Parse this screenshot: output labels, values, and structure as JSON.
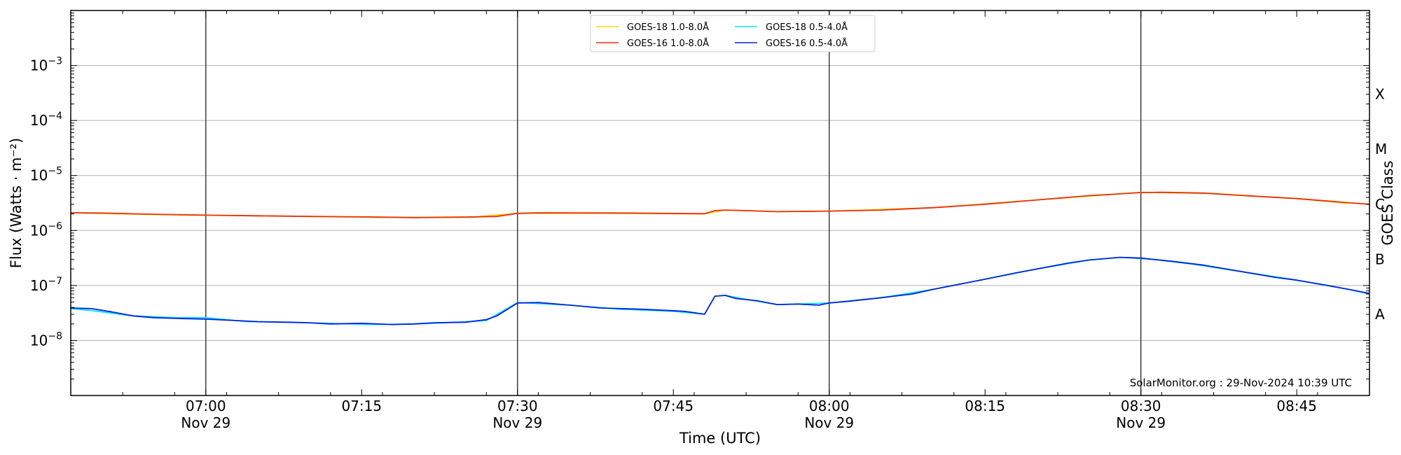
{
  "chart_data": {
    "type": "line",
    "title": "",
    "xlabel": "Time (UTC)",
    "ylabel": "Flux (Watts · m⁻²)",
    "y2label": "GOES Class",
    "yscale": "log",
    "xlim": [
      "06:47",
      "08:52"
    ],
    "ylim": [
      1e-09,
      0.01
    ],
    "grid": "horizontal at decades",
    "legend_position": "top-center",
    "credit": "SolarMonitor.org : 29-Nov-2024 10:39 UTC",
    "x_ticks": [
      {
        "t": "07:00",
        "label": "07:00",
        "date": "Nov 29"
      },
      {
        "t": "07:15",
        "label": "07:15",
        "date": ""
      },
      {
        "t": "07:30",
        "label": "07:30",
        "date": "Nov 29"
      },
      {
        "t": "07:45",
        "label": "07:45",
        "date": ""
      },
      {
        "t": "08:00",
        "label": "08:00",
        "date": "Nov 29"
      },
      {
        "t": "08:15",
        "label": "08:15",
        "date": ""
      },
      {
        "t": "08:30",
        "label": "08:30",
        "date": "Nov 29"
      },
      {
        "t": "08:45",
        "label": "08:45",
        "date": ""
      }
    ],
    "vertical_lines": [
      "07:00",
      "07:30",
      "08:00",
      "08:30"
    ],
    "y_ticks": [
      {
        "value": 1e-08,
        "base": "10",
        "exp": "−8"
      },
      {
        "value": 1e-07,
        "base": "10",
        "exp": "−7"
      },
      {
        "value": 1e-06,
        "base": "10",
        "exp": "−6"
      },
      {
        "value": 1e-05,
        "base": "10",
        "exp": "−5"
      },
      {
        "value": 0.0001,
        "base": "10",
        "exp": "−4"
      },
      {
        "value": 0.001,
        "base": "10",
        "exp": "−3"
      }
    ],
    "goes_classes": [
      {
        "label": "A",
        "value": 3e-08
      },
      {
        "label": "B",
        "value": 3e-07
      },
      {
        "label": "C",
        "value": 3e-06
      },
      {
        "label": "M",
        "value": 3e-05
      },
      {
        "label": "X",
        "value": 0.0003
      }
    ],
    "series": [
      {
        "name": "GOES-18 1.0-8.0Å",
        "color": "#ffd700",
        "points": [
          [
            "06:47",
            2.1e-06
          ],
          [
            "06:55",
            1.95e-06
          ],
          [
            "07:05",
            1.85e-06
          ],
          [
            "07:15",
            1.75e-06
          ],
          [
            "07:20",
            1.72e-06
          ],
          [
            "07:26",
            1.78e-06
          ],
          [
            "07:30",
            2.05e-06
          ],
          [
            "07:40",
            2.05e-06
          ],
          [
            "07:48",
            2e-06
          ],
          [
            "07:50",
            2.35e-06
          ],
          [
            "07:55",
            2.2e-06
          ],
          [
            "08:00",
            2.25e-06
          ],
          [
            "08:10",
            2.6e-06
          ],
          [
            "08:20",
            3.6e-06
          ],
          [
            "08:30",
            4.95e-06
          ],
          [
            "08:37",
            4.7e-06
          ],
          [
            "08:45",
            3.8e-06
          ],
          [
            "08:50",
            3.1e-06
          ]
        ]
      },
      {
        "name": "GOES-18 0.5-4.0Å",
        "color": "#00e5ff",
        "points": [
          [
            "06:47",
            3.8e-08
          ],
          [
            "06:49",
            3.5e-08
          ],
          [
            "06:53",
            2.8e-08
          ],
          [
            "06:57",
            2.6e-08
          ],
          [
            "07:00",
            2.6e-08
          ],
          [
            "07:04",
            2.2e-08
          ],
          [
            "07:10",
            2.1e-08
          ],
          [
            "07:16",
            1.95e-08
          ],
          [
            "07:20",
            2e-08
          ],
          [
            "07:23",
            2.1e-08
          ],
          [
            "07:27",
            2.3e-08
          ],
          [
            "07:30",
            4.9e-08
          ],
          [
            "07:35",
            4.4e-08
          ],
          [
            "07:40",
            3.7e-08
          ],
          [
            "07:45",
            3.4e-08
          ],
          [
            "07:48",
            3e-08
          ],
          [
            "07:49",
            6.4e-08
          ],
          [
            "07:50",
            6.6e-08
          ],
          [
            "07:52",
            5.6e-08
          ],
          [
            "07:55",
            4.5e-08
          ],
          [
            "08:00",
            4.8e-08
          ],
          [
            "08:05",
            6e-08
          ],
          [
            "08:10",
            8.5e-08
          ],
          [
            "08:15",
            1.3e-07
          ],
          [
            "08:20",
            2e-07
          ],
          [
            "08:25",
            2.9e-07
          ],
          [
            "08:28",
            3.25e-07
          ],
          [
            "08:31",
            3e-07
          ],
          [
            "08:35",
            2.45e-07
          ],
          [
            "08:40",
            1.75e-07
          ],
          [
            "08:45",
            1.25e-07
          ],
          [
            "08:50",
            8.5e-08
          ],
          [
            "08:52",
            7e-08
          ]
        ]
      },
      {
        "name": "GOES-16 1.0-8.0Å",
        "color": "#e8300e",
        "points": [
          [
            "06:47",
            2.1e-06
          ],
          [
            "06:50",
            2.08e-06
          ],
          [
            "06:55",
            1.97e-06
          ],
          [
            "07:00",
            1.9e-06
          ],
          [
            "07:05",
            1.85e-06
          ],
          [
            "07:10",
            1.8e-06
          ],
          [
            "07:15",
            1.77e-06
          ],
          [
            "07:20",
            1.72e-06
          ],
          [
            "07:25",
            1.75e-06
          ],
          [
            "07:28",
            1.8e-06
          ],
          [
            "07:30",
            2.05e-06
          ],
          [
            "07:32",
            2.1e-06
          ],
          [
            "07:40",
            2.08e-06
          ],
          [
            "07:48",
            2.02e-06
          ],
          [
            "07:49",
            2.3e-06
          ],
          [
            "07:50",
            2.35e-06
          ],
          [
            "07:52",
            2.3e-06
          ],
          [
            "07:55",
            2.2e-06
          ],
          [
            "08:00",
            2.25e-06
          ],
          [
            "08:05",
            2.35e-06
          ],
          [
            "08:10",
            2.6e-06
          ],
          [
            "08:15",
            3e-06
          ],
          [
            "08:20",
            3.6e-06
          ],
          [
            "08:25",
            4.3e-06
          ],
          [
            "08:30",
            4.9e-06
          ],
          [
            "08:32",
            4.95e-06
          ],
          [
            "08:36",
            4.8e-06
          ],
          [
            "08:40",
            4.3e-06
          ],
          [
            "08:45",
            3.8e-06
          ],
          [
            "08:50",
            3.2e-06
          ],
          [
            "08:52",
            3e-06
          ]
        ]
      },
      {
        "name": "GOES-16 0.5-4.0Å",
        "color": "#0022dd",
        "points": [
          [
            "06:47",
            3.9e-08
          ],
          [
            "06:49",
            3.8e-08
          ],
          [
            "06:51",
            3.3e-08
          ],
          [
            "06:53",
            2.8e-08
          ],
          [
            "06:55",
            2.6e-08
          ],
          [
            "06:58",
            2.5e-08
          ],
          [
            "07:00",
            2.45e-08
          ],
          [
            "07:03",
            2.3e-08
          ],
          [
            "07:05",
            2.2e-08
          ],
          [
            "07:08",
            2.15e-08
          ],
          [
            "07:10",
            2.1e-08
          ],
          [
            "07:12",
            2e-08
          ],
          [
            "07:15",
            2.05e-08
          ],
          [
            "07:18",
            1.95e-08
          ],
          [
            "07:20",
            2e-08
          ],
          [
            "07:22",
            2.1e-08
          ],
          [
            "07:25",
            2.15e-08
          ],
          [
            "07:27",
            2.4e-08
          ],
          [
            "07:28",
            2.8e-08
          ],
          [
            "07:30",
            4.8e-08
          ],
          [
            "07:32",
            4.9e-08
          ],
          [
            "07:35",
            4.4e-08
          ],
          [
            "07:38",
            3.9e-08
          ],
          [
            "07:42",
            3.7e-08
          ],
          [
            "07:46",
            3.4e-08
          ],
          [
            "07:48",
            3e-08
          ],
          [
            "07:49",
            6.4e-08
          ],
          [
            "07:50",
            6.6e-08
          ],
          [
            "07:51",
            5.8e-08
          ],
          [
            "07:53",
            5.3e-08
          ],
          [
            "07:55",
            4.5e-08
          ],
          [
            "07:57",
            4.6e-08
          ],
          [
            "07:59",
            4.4e-08
          ],
          [
            "08:00",
            4.8e-08
          ],
          [
            "08:02",
            5.2e-08
          ],
          [
            "08:05",
            6e-08
          ],
          [
            "08:08",
            7e-08
          ],
          [
            "08:10",
            8.5e-08
          ],
          [
            "08:13",
            1.1e-07
          ],
          [
            "08:15",
            1.3e-07
          ],
          [
            "08:18",
            1.7e-07
          ],
          [
            "08:20",
            2e-07
          ],
          [
            "08:23",
            2.55e-07
          ],
          [
            "08:25",
            2.9e-07
          ],
          [
            "08:28",
            3.25e-07
          ],
          [
            "08:30",
            3.15e-07
          ],
          [
            "08:33",
            2.75e-07
          ],
          [
            "08:36",
            2.35e-07
          ],
          [
            "08:40",
            1.75e-07
          ],
          [
            "08:43",
            1.4e-07
          ],
          [
            "08:45",
            1.25e-07
          ],
          [
            "08:48",
            1e-07
          ],
          [
            "08:50",
            8.5e-08
          ],
          [
            "08:52",
            7.2e-08
          ]
        ]
      }
    ]
  }
}
